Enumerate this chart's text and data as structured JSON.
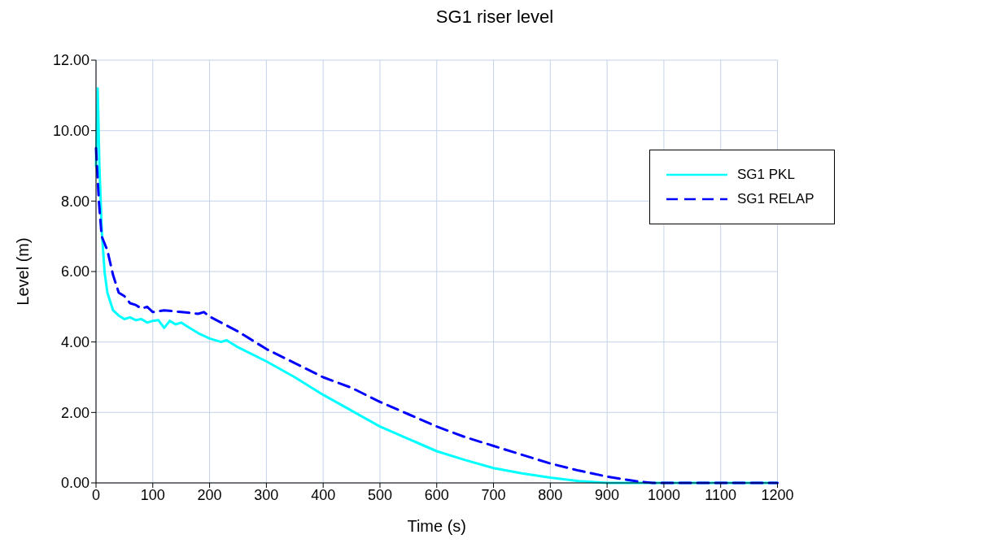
{
  "chart_data": {
    "type": "line",
    "title": "SG1 riser level",
    "xlabel": "Time  (s)",
    "ylabel": "Level (m)",
    "xlim": [
      0,
      1200
    ],
    "xticks": [
      0,
      100,
      200,
      300,
      400,
      500,
      600,
      700,
      800,
      900,
      1000,
      1100,
      1200
    ],
    "ylim": [
      0,
      12
    ],
    "yticks": [
      {
        "value": 0,
        "label": "0.00"
      },
      {
        "value": 2,
        "label": "2.00"
      },
      {
        "value": 4,
        "label": "4.00"
      },
      {
        "value": 6,
        "label": "6.00"
      },
      {
        "value": 8,
        "label": "8.00"
      },
      {
        "value": 10,
        "label": "10.00"
      },
      {
        "value": 12,
        "label": "12.00"
      }
    ],
    "grid": true,
    "legend": "top right",
    "marker": "none",
    "series": [
      {
        "name": "SG1 PKL",
        "color": "#00ffff",
        "line_style": "solid",
        "x": [
          0,
          3,
          6,
          10,
          15,
          20,
          30,
          40,
          50,
          60,
          70,
          80,
          90,
          100,
          110,
          120,
          130,
          140,
          150,
          160,
          170,
          180,
          200,
          220,
          230,
          250,
          300,
          350,
          400,
          450,
          500,
          550,
          600,
          650,
          700,
          750,
          800,
          850,
          900,
          1000,
          1200
        ],
        "values": [
          9.0,
          11.2,
          9.0,
          7.2,
          6.0,
          5.4,
          4.9,
          4.75,
          4.65,
          4.7,
          4.62,
          4.65,
          4.55,
          4.6,
          4.62,
          4.4,
          4.6,
          4.5,
          4.55,
          4.45,
          4.35,
          4.25,
          4.1,
          4.0,
          4.05,
          3.85,
          3.45,
          3.0,
          2.5,
          2.05,
          1.6,
          1.25,
          0.9,
          0.65,
          0.42,
          0.27,
          0.15,
          0.05,
          0,
          0,
          0
        ]
      },
      {
        "name": "SG1 RELAP",
        "color": "#0000ff",
        "line_style": "dashed",
        "x": [
          0,
          5,
          10,
          20,
          30,
          40,
          50,
          60,
          70,
          80,
          90,
          100,
          120,
          150,
          180,
          190,
          200,
          250,
          300,
          350,
          400,
          450,
          500,
          550,
          600,
          650,
          700,
          750,
          800,
          850,
          900,
          950,
          980,
          1200
        ],
        "values": [
          9.5,
          8.0,
          7.0,
          6.6,
          5.9,
          5.4,
          5.3,
          5.1,
          5.05,
          4.95,
          5.0,
          4.85,
          4.9,
          4.85,
          4.8,
          4.85,
          4.72,
          4.3,
          3.8,
          3.4,
          3.0,
          2.7,
          2.3,
          1.95,
          1.6,
          1.3,
          1.05,
          0.8,
          0.55,
          0.35,
          0.18,
          0.05,
          0,
          0.0
        ]
      }
    ]
  }
}
